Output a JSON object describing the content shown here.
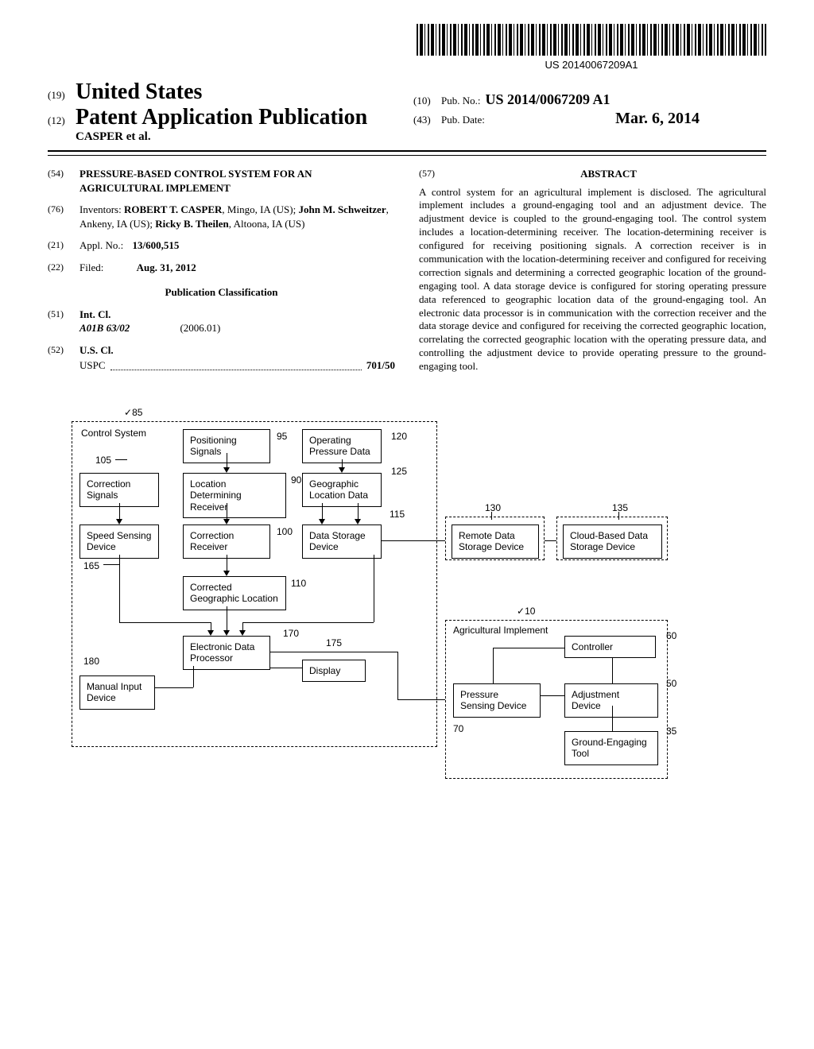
{
  "barcode_text": "US 20140067209A1",
  "header": {
    "code19": "(19)",
    "country": "United States",
    "code12": "(12)",
    "doc_type": "Patent Application Publication",
    "authors_line": "CASPER et al.",
    "code10": "(10)",
    "pub_no_label": "Pub. No.:",
    "pub_no": "US 2014/0067209 A1",
    "code43": "(43)",
    "pub_date_label": "Pub. Date:",
    "pub_date": "Mar. 6, 2014"
  },
  "left_col": {
    "code54": "(54)",
    "title": "PRESSURE-BASED CONTROL SYSTEM FOR AN AGRICULTURAL IMPLEMENT",
    "code76": "(76)",
    "inventors_label": "Inventors:",
    "inventors": "ROBERT T. CASPER, Mingo, IA (US); John M. Schweitzer, Ankeny, IA (US); Ricky B. Theilen, Altoona, IA (US)",
    "code21": "(21)",
    "appl_no_label": "Appl. No.:",
    "appl_no": "13/600,515",
    "code22": "(22)",
    "filed_label": "Filed:",
    "filed": "Aug. 31, 2012",
    "pub_class_heading": "Publication Classification",
    "code51": "(51)",
    "int_cl_label": "Int. Cl.",
    "int_cl_code": "A01B 63/02",
    "int_cl_year": "(2006.01)",
    "code52": "(52)",
    "us_cl_label": "U.S. Cl.",
    "uspc_label": "USPC",
    "uspc_val": "701/50"
  },
  "right_col": {
    "code57": "(57)",
    "abstract_heading": "ABSTRACT",
    "abstract": "A control system for an agricultural implement is disclosed. The agricultural implement includes a ground-engaging tool and an adjustment device. The adjustment device is coupled to the ground-engaging tool. The control system includes a location-determining receiver. The location-determining receiver is configured for receiving positioning signals. A correction receiver is in communication with the location-determining receiver and configured for receiving correction signals and determining a corrected geographic location of the ground-engaging tool. A data storage device is configured for storing operating pressure data referenced to geographic location data of the ground-engaging tool. An electronic data processor is in communication with the correction receiver and the data storage device and configured for receiving the corrected geographic location, correlating the corrected geographic location with the operating pressure data, and controlling the adjustment device to provide operating pressure to the ground-engaging tool."
  },
  "diagram": {
    "ref85": "85",
    "control_system": "Control System",
    "positioning_signals": "Positioning Signals",
    "ref95": "95",
    "operating_pressure_data": "Operating\nPressure Data",
    "ref120": "120",
    "ref105": "105",
    "correction_signals": "Correction\nSignals",
    "location_determining_receiver": "Location Determining\nReceiver",
    "ref90": "90",
    "geographic_location_data": "Geographic\nLocation Data",
    "ref125": "125",
    "ref115": "115",
    "ref130": "130",
    "ref135": "135",
    "speed_sensing_device": "Speed Sensing\nDevice",
    "correction_receiver": "Correction\nReceiver",
    "ref100": "100",
    "data_storage_device": "Data Storage\nDevice",
    "remote_data_storage": "Remote Data\nStorage Device",
    "cloud_based_data_storage": "Cloud-Based Data\nStorage Device",
    "ref165": "165",
    "corrected_geographic_location": "Corrected\nGeographic Location",
    "ref110": "110",
    "electronic_data_processor": "Electronic Data\nProcessor",
    "ref170": "170",
    "display": "Display",
    "ref175": "175",
    "ref180": "180",
    "manual_input_device": "Manual Input\nDevice",
    "ref10": "10",
    "agricultural_implement": "Agricultural Implement",
    "controller": "Controller",
    "ref60": "60",
    "pressure_sensing_device": "Pressure\nSensing Device",
    "adjustment_device": "Adjustment Device",
    "ref50": "50",
    "ref70": "70",
    "ground_engaging_tool": "Ground-Engaging\nTool",
    "ref35": "35"
  }
}
